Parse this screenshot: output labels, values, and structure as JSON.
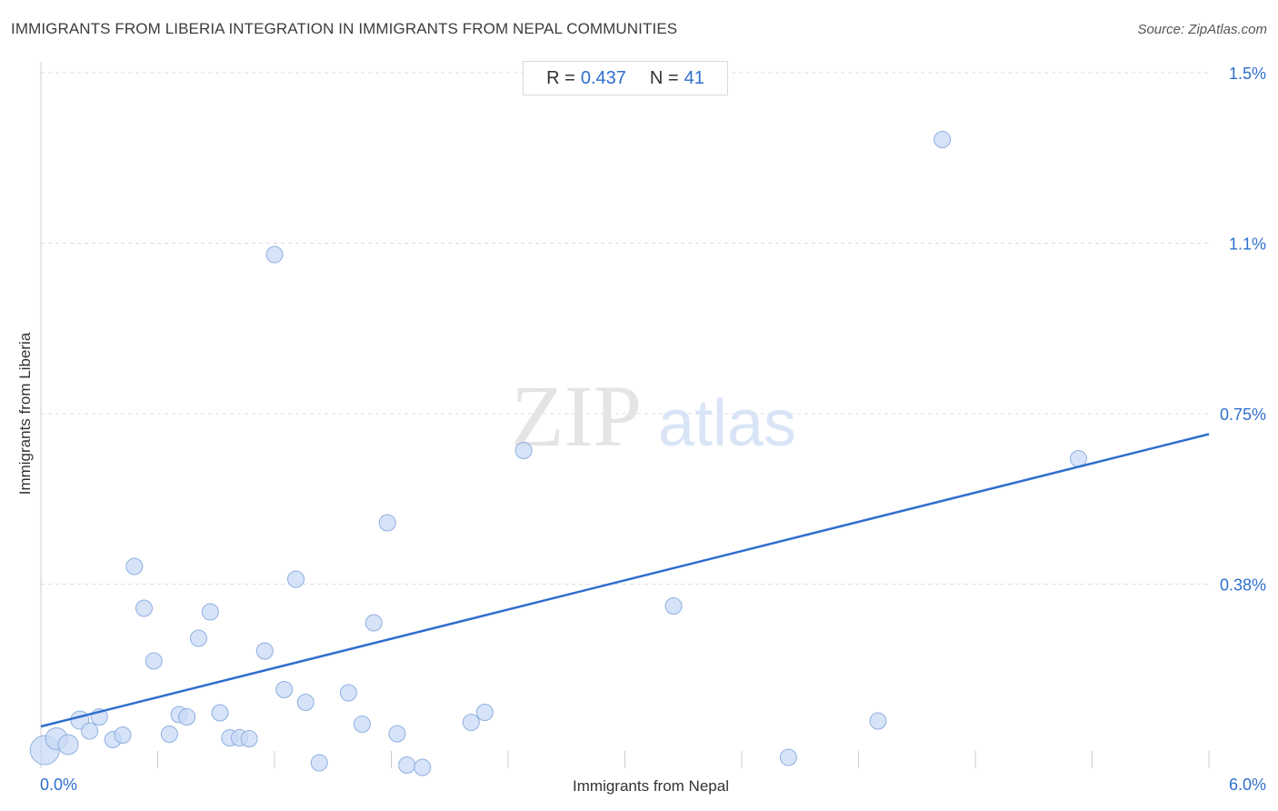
{
  "title": "IMMIGRANTS FROM LIBERIA INTEGRATION IN IMMIGRANTS FROM NEPAL COMMUNITIES",
  "source": "Source: ZipAtlas.com",
  "stats": {
    "r_label": "R =",
    "r_value": "0.437",
    "n_label": "N =",
    "n_value": "41"
  },
  "watermark": {
    "zip": "ZIP",
    "atlas": "atlas"
  },
  "colors": {
    "accent": "#2f6fcd",
    "point_fill": "#c8daf5",
    "point_stroke": "#8fb0e0",
    "grid": "#dddddd"
  },
  "chart_data": {
    "type": "scatter",
    "xlabel": "Immigrants from Nepal",
    "ylabel": "Immigrants from Liberia",
    "xlim": [
      0,
      6.0
    ],
    "ylim": [
      0,
      1.5
    ],
    "x_tick_labels": [
      {
        "value": 0,
        "label": "0.0%"
      },
      {
        "value": 6.0,
        "label": "6.0%"
      }
    ],
    "y_tick_labels": [
      {
        "value": 0.375,
        "label": "0.38%"
      },
      {
        "value": 0.75,
        "label": "0.75%"
      },
      {
        "value": 1.125,
        "label": "1.1%"
      },
      {
        "value": 1.5,
        "label": "1.5%"
      }
    ],
    "grid": "horizontal dashed",
    "trendline": {
      "x": [
        0,
        6.0
      ],
      "y": [
        0.062,
        0.705
      ]
    },
    "points": [
      {
        "x": 0.02,
        "y": 0.01,
        "s": 16
      },
      {
        "x": 0.08,
        "y": 0.035,
        "s": 12
      },
      {
        "x": 0.14,
        "y": 0.022,
        "s": 11
      },
      {
        "x": 0.2,
        "y": 0.076,
        "s": 10
      },
      {
        "x": 0.25,
        "y": 0.052,
        "s": 9
      },
      {
        "x": 0.3,
        "y": 0.083,
        "s": 9
      },
      {
        "x": 0.37,
        "y": 0.033,
        "s": 9
      },
      {
        "x": 0.42,
        "y": 0.043,
        "s": 9
      },
      {
        "x": 0.48,
        "y": 0.414,
        "s": 9
      },
      {
        "x": 0.53,
        "y": 0.322,
        "s": 9
      },
      {
        "x": 0.58,
        "y": 0.206,
        "s": 9
      },
      {
        "x": 0.66,
        "y": 0.045,
        "s": 9
      },
      {
        "x": 0.71,
        "y": 0.088,
        "s": 9
      },
      {
        "x": 0.75,
        "y": 0.083,
        "s": 9
      },
      {
        "x": 0.81,
        "y": 0.256,
        "s": 9
      },
      {
        "x": 0.87,
        "y": 0.314,
        "s": 9
      },
      {
        "x": 0.92,
        "y": 0.092,
        "s": 9
      },
      {
        "x": 0.97,
        "y": 0.037,
        "s": 9
      },
      {
        "x": 1.02,
        "y": 0.037,
        "s": 9
      },
      {
        "x": 1.07,
        "y": 0.035,
        "s": 9
      },
      {
        "x": 1.15,
        "y": 0.228,
        "s": 9
      },
      {
        "x": 1.2,
        "y": 1.1,
        "s": 9
      },
      {
        "x": 1.25,
        "y": 0.143,
        "s": 9
      },
      {
        "x": 1.31,
        "y": 0.386,
        "s": 9
      },
      {
        "x": 1.36,
        "y": 0.115,
        "s": 9
      },
      {
        "x": 1.43,
        "y": -0.018,
        "s": 9
      },
      {
        "x": 1.58,
        "y": 0.136,
        "s": 9
      },
      {
        "x": 1.65,
        "y": 0.067,
        "s": 9
      },
      {
        "x": 1.71,
        "y": 0.29,
        "s": 9
      },
      {
        "x": 1.78,
        "y": 0.51,
        "s": 9
      },
      {
        "x": 1.83,
        "y": 0.046,
        "s": 9
      },
      {
        "x": 1.88,
        "y": -0.023,
        "s": 9
      },
      {
        "x": 1.96,
        "y": -0.028,
        "s": 9
      },
      {
        "x": 2.21,
        "y": 0.071,
        "s": 9
      },
      {
        "x": 2.28,
        "y": 0.093,
        "s": 9
      },
      {
        "x": 2.48,
        "y": 0.669,
        "s": 9
      },
      {
        "x": 3.25,
        "y": 0.327,
        "s": 9
      },
      {
        "x": 3.84,
        "y": -0.006,
        "s": 9
      },
      {
        "x": 4.3,
        "y": 0.074,
        "s": 9
      },
      {
        "x": 4.63,
        "y": 1.353,
        "s": 9
      },
      {
        "x": 5.33,
        "y": 0.651,
        "s": 9
      }
    ]
  }
}
